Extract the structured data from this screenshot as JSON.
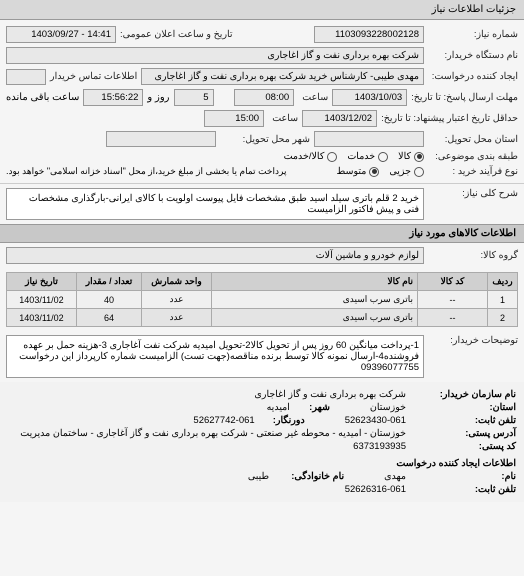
{
  "tab": {
    "title": "جزئیات اطلاعات نیاز"
  },
  "header": {
    "req_no_label": "شماره نیاز:",
    "req_no": "1103093228002128",
    "datetime_label": "تاریخ و ساعت اعلان عمومی:",
    "datetime": "14:41 - 1403/09/27",
    "org_label": "نام دستگاه خریدار:",
    "org": "شرکت بهره برداری نفت و گاز اغاجاری",
    "creator_label": "ایجاد کننده درخواست:",
    "creator": "مهدی طیبی- کارشناس خرید شرکت بهره برداری نفت و گاز اغاجاری",
    "contact_label": "اطلاعات تماس خریدار",
    "deadline_send_label": "مهلت ارسال پاسخ: تا تاریخ:",
    "deadline_send_date": "1403/10/03",
    "time_label": "ساعت",
    "deadline_send_time": "08:00",
    "and_label": "و",
    "day_label": "روز و",
    "remaining_label": "ساعت باقی مانده",
    "remaining_days": "5",
    "remaining_time": "15:56:22",
    "validity_label": "حداقل تاریخ اعتبار پیشنهاد: تا تاریخ:",
    "validity_date": "1403/12/02",
    "validity_time": "15:00",
    "delivery_place_label": "استان محل تحویل:",
    "delivery_place": "",
    "delivery_city_label": "شهر محل تحویل:",
    "delivery_city": "",
    "packaging_label": "طبقه بندی موضوعی:",
    "pkg_all": "کالا",
    "pkg_service": "خدمات",
    "pkg_both": "کالا/خدمت",
    "process_label": "نوع فرآیند خرید :",
    "proc_small": "جزیی",
    "proc_medium": "متوسط",
    "proc_note": "پرداخت تمام یا بخشی از مبلغ خرید،از محل \"اسناد خزانه اسلامی\" خواهد بود.",
    "desc_label": "شرح کلی نیاز:",
    "desc": "خرید 2 قلم باتری سیلد اسید طبق مشخصات فایل پیوست اولویت با کالای ایرانی-بارگذاری مشخصات فنی و پیش فاکتور الزامیست"
  },
  "goods": {
    "title": "اطلاعات کالاهای مورد نیاز",
    "group_label": "گروه کالا:",
    "group": "لوازم خودرو و ماشین آلات",
    "cols": {
      "row": "ردیف",
      "code": "کد کالا",
      "name": "نام کالا",
      "unit": "واحد شمارش",
      "qty": "تعداد / مقدار",
      "date": "تاریخ نیاز"
    },
    "rows": [
      {
        "n": "1",
        "code": "--",
        "name": "باتری سرب اسیدی",
        "unit": "عدد",
        "qty": "40",
        "date": "1403/11/02"
      },
      {
        "n": "2",
        "code": "--",
        "name": "باتری سرب اسیدی",
        "unit": "عدد",
        "qty": "64",
        "date": "1403/11/02"
      }
    ],
    "note_label": "توضیحات خریدار:",
    "note": "1-پرداخت میانگین 60 روز پس از تحویل کالا2-تحویل امیدیه شرکت نفت آغاجاری 3-هزینه حمل بر عهده فروشنده4-ارسال نمونه کالا توسط برنده مناقصه(جهت تست) الزامیست شماره کارپرداز این درخواست 09396077755"
  },
  "footer": {
    "buyer_org_label": "نام سازمان خریدار:",
    "buyer_org": "شرکت بهره برداری نفت و گاز اغاجاری",
    "city_label": "امیدیه",
    "city_value": "شهر:",
    "province_label": "خوزستان",
    "province_value": "استان:",
    "tel_label": "تلفن ثابت:",
    "tel": "52623430-061",
    "fax_label": "دورنگار:",
    "fax": "52627742-061",
    "addr_label": "آدرس پستی:",
    "addr": "خوزستان - امیدیه - محوطه غیر صنعتی - شرکت بهره برداری نفت و گاز آغاجاری - ساختمان مدیریت",
    "post_label": "کد پستی:",
    "post": "6373193935",
    "creator_title": "اطلاعات ایجاد کننده درخواست",
    "cname_label": "نام:",
    "cname": "مهدی",
    "cfam_label": "نام خانوادگی:",
    "cfam": "طیبی",
    "ctel_label": "تلفن ثابت:",
    "ctel": "52626316-061"
  }
}
